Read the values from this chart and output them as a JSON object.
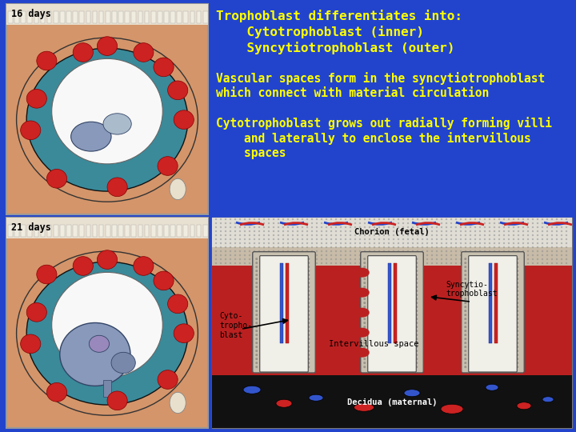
{
  "background_color": "#2244cc",
  "title_text_lines": [
    "Trophoblast differentiates into:",
    "    Cytotrophoblast (inner)",
    "    Syncytiotrophoblast (outer)"
  ],
  "para2_lines": [
    "Vascular spaces form in the syncytiotrophoblast",
    "which connect with material circulation"
  ],
  "para3_lines": [
    "Cytotrophoblast grows out radially forming villi",
    "    and laterally to enclose the intervillous",
    "    spaces"
  ],
  "label_16days": "16 days",
  "label_21days": "21 days",
  "text_color_yellow": "#ffff00",
  "text_color_white": "#ffffff",
  "text_color_black": "#000000",
  "figsize": [
    7.2,
    5.4
  ],
  "dpi": 100,
  "font_family": "monospace"
}
